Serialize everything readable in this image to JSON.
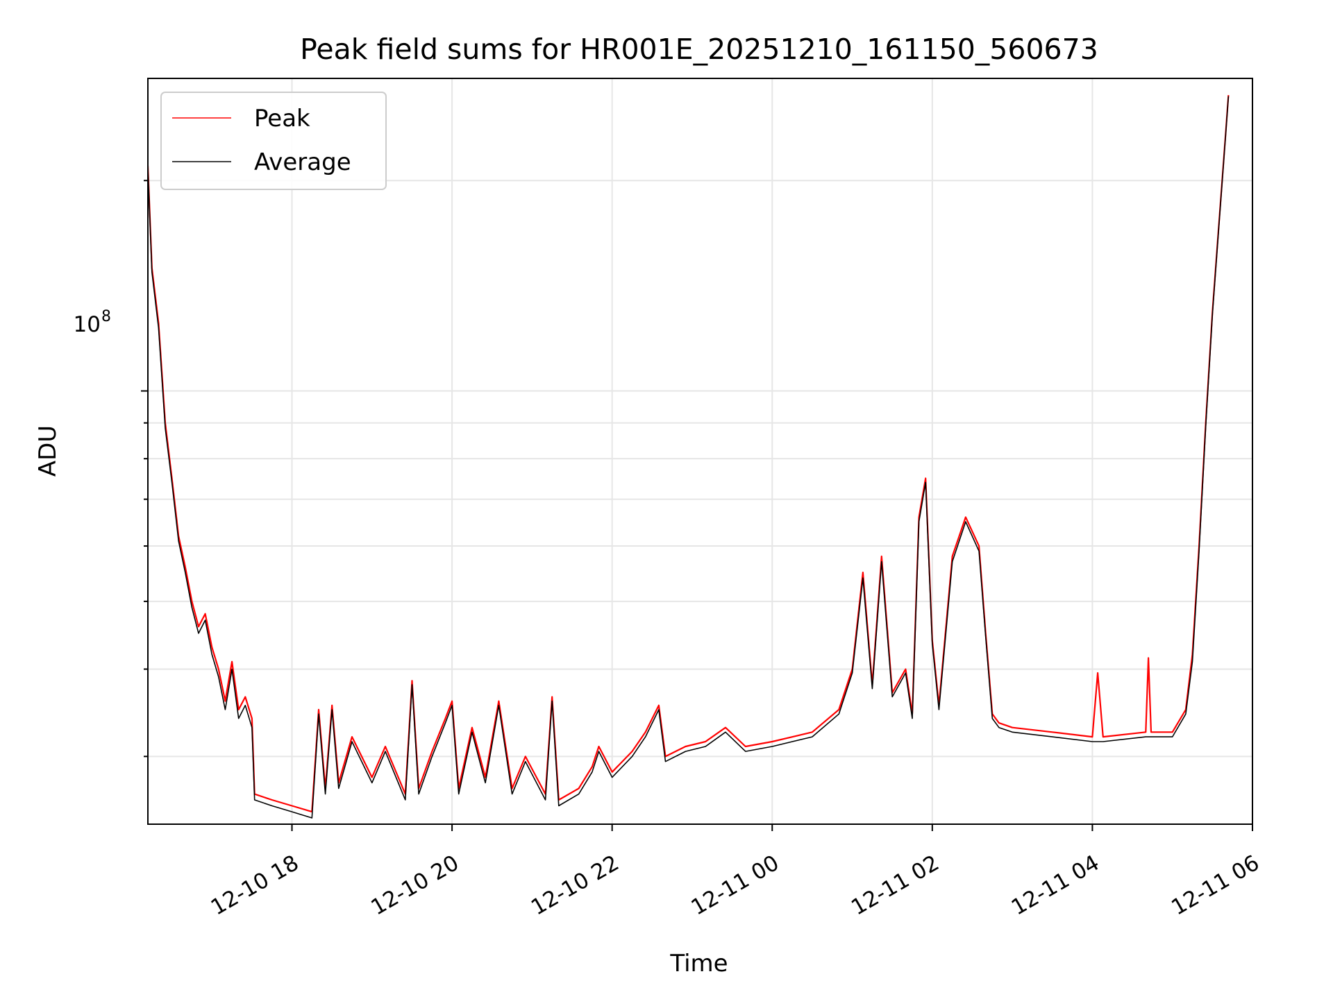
{
  "chart_data": {
    "type": "line",
    "title": "Peak field sums for HR001E_20251210_161150_560673",
    "xlabel": "Time",
    "ylabel": "ADU",
    "y_scale": "log",
    "ylim": [
      24000000,
      280000000
    ],
    "xlim": [
      "2025-12-10 16:12",
      "2025-12-11 06:00"
    ],
    "grid": true,
    "legend_position": "upper-left",
    "x_ticks": [
      "12-10 18",
      "12-10 20",
      "12-10 22",
      "12-11 00",
      "12-11 02",
      "12-11 04",
      "12-11 06"
    ],
    "x_tick_times": [
      "2025-12-10 18:00",
      "2025-12-10 20:00",
      "2025-12-10 22:00",
      "2025-12-11 00:00",
      "2025-12-11 02:00",
      "2025-12-11 04:00",
      "2025-12-11 06:00"
    ],
    "y_major_tick": {
      "value": 100000000,
      "base": "10",
      "exponent": "8"
    },
    "y_minor_ticks": [
      30000000,
      40000000,
      50000000,
      60000000,
      70000000,
      80000000,
      90000000,
      200000000
    ],
    "series": [
      {
        "name": "Peak",
        "color": "#ff0000",
        "points": [
          [
            "2025-12-10 16:12",
            210000000
          ],
          [
            "2025-12-10 16:15",
            150000000
          ],
          [
            "2025-12-10 16:20",
            125000000
          ],
          [
            "2025-12-10 16:25",
            90000000
          ],
          [
            "2025-12-10 16:30",
            75000000
          ],
          [
            "2025-12-10 16:35",
            62000000
          ],
          [
            "2025-12-10 16:40",
            56000000
          ],
          [
            "2025-12-10 16:45",
            50000000
          ],
          [
            "2025-12-10 16:50",
            46000000
          ],
          [
            "2025-12-10 16:55",
            48000000
          ],
          [
            "2025-12-10 17:00",
            43000000
          ],
          [
            "2025-12-10 17:05",
            40000000
          ],
          [
            "2025-12-10 17:10",
            36000000
          ],
          [
            "2025-12-10 17:15",
            41000000
          ],
          [
            "2025-12-10 17:20",
            35000000
          ],
          [
            "2025-12-10 17:25",
            36500000
          ],
          [
            "2025-12-10 17:30",
            34000000
          ],
          [
            "2025-12-10 17:32",
            26500000
          ],
          [
            "2025-12-10 17:45",
            26000000
          ],
          [
            "2025-12-10 18:00",
            25500000
          ],
          [
            "2025-12-10 18:15",
            25000000
          ],
          [
            "2025-12-10 18:20",
            35000000
          ],
          [
            "2025-12-10 18:25",
            27000000
          ],
          [
            "2025-12-10 18:30",
            35500000
          ],
          [
            "2025-12-10 18:35",
            27500000
          ],
          [
            "2025-12-10 18:45",
            32000000
          ],
          [
            "2025-12-10 19:00",
            28000000
          ],
          [
            "2025-12-10 19:10",
            31000000
          ],
          [
            "2025-12-10 19:25",
            26500000
          ],
          [
            "2025-12-10 19:30",
            38500000
          ],
          [
            "2025-12-10 19:35",
            27000000
          ],
          [
            "2025-12-10 19:45",
            30500000
          ],
          [
            "2025-12-10 19:55",
            34000000
          ],
          [
            "2025-12-10 20:00",
            36000000
          ],
          [
            "2025-12-10 20:05",
            27000000
          ],
          [
            "2025-12-10 20:15",
            33000000
          ],
          [
            "2025-12-10 20:25",
            28000000
          ],
          [
            "2025-12-10 20:35",
            36000000
          ],
          [
            "2025-12-10 20:45",
            27000000
          ],
          [
            "2025-12-10 20:55",
            30000000
          ],
          [
            "2025-12-10 21:10",
            26500000
          ],
          [
            "2025-12-10 21:15",
            36500000
          ],
          [
            "2025-12-10 21:20",
            26000000
          ],
          [
            "2025-12-10 21:35",
            27000000
          ],
          [
            "2025-12-10 21:45",
            29000000
          ],
          [
            "2025-12-10 21:50",
            31000000
          ],
          [
            "2025-12-10 22:00",
            28500000
          ],
          [
            "2025-12-10 22:15",
            30500000
          ],
          [
            "2025-12-10 22:25",
            32500000
          ],
          [
            "2025-12-10 22:35",
            35500000
          ],
          [
            "2025-12-10 22:40",
            30000000
          ],
          [
            "2025-12-10 22:55",
            31000000
          ],
          [
            "2025-12-10 23:10",
            31500000
          ],
          [
            "2025-12-10 23:25",
            33000000
          ],
          [
            "2025-12-10 23:40",
            31000000
          ],
          [
            "2025-12-11 00:00",
            31500000
          ],
          [
            "2025-12-11 00:30",
            32500000
          ],
          [
            "2025-12-11 00:50",
            35000000
          ],
          [
            "2025-12-11 01:00",
            40000000
          ],
          [
            "2025-12-11 01:08",
            55000000
          ],
          [
            "2025-12-11 01:15",
            38000000
          ],
          [
            "2025-12-11 01:22",
            58000000
          ],
          [
            "2025-12-11 01:30",
            37000000
          ],
          [
            "2025-12-11 01:40",
            40000000
          ],
          [
            "2025-12-11 01:45",
            34500000
          ],
          [
            "2025-12-11 01:50",
            66000000
          ],
          [
            "2025-12-11 01:55",
            75000000
          ],
          [
            "2025-12-11 02:00",
            44000000
          ],
          [
            "2025-12-11 02:05",
            35500000
          ],
          [
            "2025-12-11 02:15",
            58000000
          ],
          [
            "2025-12-11 02:25",
            66000000
          ],
          [
            "2025-12-11 02:35",
            60000000
          ],
          [
            "2025-12-11 02:40",
            45000000
          ],
          [
            "2025-12-11 02:45",
            34500000
          ],
          [
            "2025-12-11 02:50",
            33500000
          ],
          [
            "2025-12-11 03:00",
            33000000
          ],
          [
            "2025-12-11 03:30",
            32500000
          ],
          [
            "2025-12-11 04:00",
            32000000
          ],
          [
            "2025-12-11 04:04",
            39500000
          ],
          [
            "2025-12-11 04:08",
            32000000
          ],
          [
            "2025-12-11 04:40",
            32500000
          ],
          [
            "2025-12-11 04:42",
            41500000
          ],
          [
            "2025-12-11 04:44",
            32500000
          ],
          [
            "2025-12-11 05:00",
            32500000
          ],
          [
            "2025-12-11 05:10",
            35000000
          ],
          [
            "2025-12-11 05:15",
            42000000
          ],
          [
            "2025-12-11 05:20",
            60000000
          ],
          [
            "2025-12-11 05:25",
            90000000
          ],
          [
            "2025-12-11 05:30",
            130000000
          ],
          [
            "2025-12-11 05:35",
            175000000
          ],
          [
            "2025-12-11 05:40",
            235000000
          ],
          [
            "2025-12-11 05:42",
            265000000
          ]
        ]
      },
      {
        "name": "Average",
        "color": "#000000",
        "points": [
          [
            "2025-12-10 16:12",
            208000000
          ],
          [
            "2025-12-10 16:15",
            148000000
          ],
          [
            "2025-12-10 16:20",
            123000000
          ],
          [
            "2025-12-10 16:25",
            88500000
          ],
          [
            "2025-12-10 16:30",
            74000000
          ],
          [
            "2025-12-10 16:35",
            61000000
          ],
          [
            "2025-12-10 16:40",
            55000000
          ],
          [
            "2025-12-10 16:45",
            49000000
          ],
          [
            "2025-12-10 16:50",
            45000000
          ],
          [
            "2025-12-10 16:55",
            47000000
          ],
          [
            "2025-12-10 17:00",
            42000000
          ],
          [
            "2025-12-10 17:05",
            39000000
          ],
          [
            "2025-12-10 17:10",
            35000000
          ],
          [
            "2025-12-10 17:15",
            40000000
          ],
          [
            "2025-12-10 17:20",
            34000000
          ],
          [
            "2025-12-10 17:25",
            35500000
          ],
          [
            "2025-12-10 17:30",
            33000000
          ],
          [
            "2025-12-10 17:32",
            26000000
          ],
          [
            "2025-12-10 17:45",
            25500000
          ],
          [
            "2025-12-10 18:00",
            25000000
          ],
          [
            "2025-12-10 18:15",
            24500000
          ],
          [
            "2025-12-10 18:20",
            34500000
          ],
          [
            "2025-12-10 18:25",
            26500000
          ],
          [
            "2025-12-10 18:30",
            35000000
          ],
          [
            "2025-12-10 18:35",
            27000000
          ],
          [
            "2025-12-10 18:45",
            31500000
          ],
          [
            "2025-12-10 19:00",
            27500000
          ],
          [
            "2025-12-10 19:10",
            30500000
          ],
          [
            "2025-12-10 19:25",
            26000000
          ],
          [
            "2025-12-10 19:30",
            38000000
          ],
          [
            "2025-12-10 19:35",
            26500000
          ],
          [
            "2025-12-10 19:45",
            30000000
          ],
          [
            "2025-12-10 19:55",
            33500000
          ],
          [
            "2025-12-10 20:00",
            35500000
          ],
          [
            "2025-12-10 20:05",
            26500000
          ],
          [
            "2025-12-10 20:15",
            32500000
          ],
          [
            "2025-12-10 20:25",
            27500000
          ],
          [
            "2025-12-10 20:35",
            35500000
          ],
          [
            "2025-12-10 20:45",
            26500000
          ],
          [
            "2025-12-10 20:55",
            29500000
          ],
          [
            "2025-12-10 21:10",
            26000000
          ],
          [
            "2025-12-10 21:15",
            36000000
          ],
          [
            "2025-12-10 21:20",
            25500000
          ],
          [
            "2025-12-10 21:35",
            26500000
          ],
          [
            "2025-12-10 21:45",
            28500000
          ],
          [
            "2025-12-10 21:50",
            30500000
          ],
          [
            "2025-12-10 22:00",
            28000000
          ],
          [
            "2025-12-10 22:15",
            30000000
          ],
          [
            "2025-12-10 22:25",
            32000000
          ],
          [
            "2025-12-10 22:35",
            35000000
          ],
          [
            "2025-12-10 22:40",
            29500000
          ],
          [
            "2025-12-10 22:55",
            30500000
          ],
          [
            "2025-12-10 23:10",
            31000000
          ],
          [
            "2025-12-10 23:25",
            32500000
          ],
          [
            "2025-12-10 23:40",
            30500000
          ],
          [
            "2025-12-11 00:00",
            31000000
          ],
          [
            "2025-12-11 00:30",
            32000000
          ],
          [
            "2025-12-11 00:50",
            34500000
          ],
          [
            "2025-12-11 01:00",
            39500000
          ],
          [
            "2025-12-11 01:08",
            54000000
          ],
          [
            "2025-12-11 01:15",
            37500000
          ],
          [
            "2025-12-11 01:22",
            57000000
          ],
          [
            "2025-12-11 01:30",
            36500000
          ],
          [
            "2025-12-11 01:40",
            39500000
          ],
          [
            "2025-12-11 01:45",
            34000000
          ],
          [
            "2025-12-11 01:50",
            65000000
          ],
          [
            "2025-12-11 01:55",
            74000000
          ],
          [
            "2025-12-11 02:00",
            43500000
          ],
          [
            "2025-12-11 02:05",
            35000000
          ],
          [
            "2025-12-11 02:15",
            57000000
          ],
          [
            "2025-12-11 02:25",
            65000000
          ],
          [
            "2025-12-11 02:35",
            59000000
          ],
          [
            "2025-12-11 02:40",
            44500000
          ],
          [
            "2025-12-11 02:45",
            34000000
          ],
          [
            "2025-12-11 02:50",
            33000000
          ],
          [
            "2025-12-11 03:00",
            32500000
          ],
          [
            "2025-12-11 03:30",
            32000000
          ],
          [
            "2025-12-11 04:00",
            31500000
          ],
          [
            "2025-12-11 04:08",
            31500000
          ],
          [
            "2025-12-11 04:40",
            32000000
          ],
          [
            "2025-12-11 04:44",
            32000000
          ],
          [
            "2025-12-11 05:00",
            32000000
          ],
          [
            "2025-12-11 05:10",
            34500000
          ],
          [
            "2025-12-11 05:15",
            41000000
          ],
          [
            "2025-12-11 05:20",
            59000000
          ],
          [
            "2025-12-11 05:25",
            89000000
          ],
          [
            "2025-12-11 05:30",
            129000000
          ],
          [
            "2025-12-11 05:35",
            174000000
          ],
          [
            "2025-12-11 05:40",
            234000000
          ],
          [
            "2025-12-11 05:42",
            264000000
          ]
        ]
      }
    ]
  }
}
